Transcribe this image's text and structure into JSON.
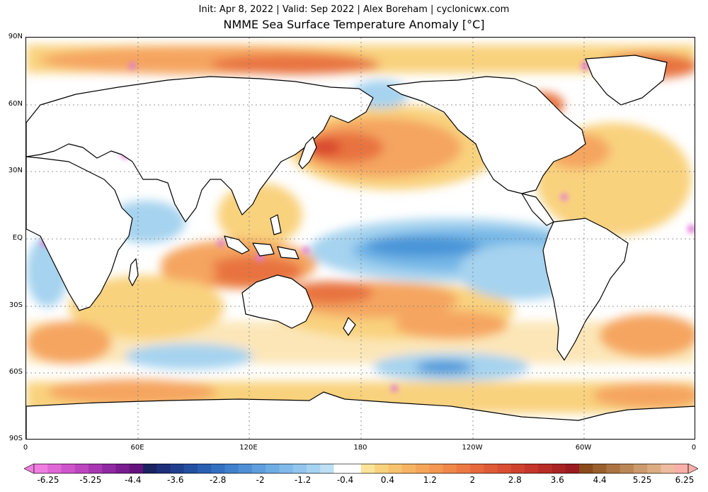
{
  "header": {
    "subtitle": "Init: Apr 8, 2022 | Valid: Sep 2022 | Alex Boreham | cyclonicwx.com",
    "title": "NMME Sea Surface Temperature Anomaly [°C]"
  },
  "map": {
    "projection": "equirectangular",
    "lat_ticks": [
      "90N",
      "60N",
      "30N",
      "EQ",
      "30S",
      "60S",
      "90S"
    ],
    "lon_ticks": [
      "0",
      "60E",
      "120E",
      "180",
      "120W",
      "60W",
      "0"
    ],
    "colors": {
      "land": "#ffffff",
      "coast": "#000000",
      "warm_light": "#f9d27e",
      "warm_mid": "#f5a560",
      "warm_strong": "#e8733f",
      "warm_peak": "#d9482e",
      "cool_light": "#a6d3ef",
      "cool_mid": "#73b6e6",
      "cool_strong": "#4a94d8",
      "extreme": "#e07ad6"
    }
  },
  "colorbar": {
    "labels": [
      "-6.25",
      "-5.25",
      "-4.4",
      "-3.6",
      "-2.8",
      "-2",
      "-1.2",
      "-0.4",
      "0.4",
      "1.2",
      "2",
      "2.8",
      "3.6",
      "4.4",
      "5.25",
      "6.25"
    ],
    "colors": [
      "#f07ee0",
      "#e067d6",
      "#cf55cc",
      "#bd45c0",
      "#a836b2",
      "#9028a2",
      "#7a1c90",
      "#63127c",
      "#1a2260",
      "#1c2f78",
      "#20408e",
      "#2450a2",
      "#2a60b2",
      "#3470c0",
      "#4080cc",
      "#4e8fd6",
      "#5e9ede",
      "#6eace4",
      "#80b9ea",
      "#93c6ee",
      "#a6d3f2",
      "#bde0f5",
      "#ffffff",
      "#ffffff",
      "#fbe39a",
      "#f9d27e",
      "#f8c36e",
      "#f6b463",
      "#f5a55a",
      "#f39752",
      "#f0884a",
      "#ec7943",
      "#e76a3d",
      "#e05c37",
      "#d84f32",
      "#cf432e",
      "#c4372a",
      "#b82d26",
      "#aa2323",
      "#9a1c20",
      "#8a4a1a",
      "#9a5f2c",
      "#ab7342",
      "#bc8757",
      "#cc9a6c",
      "#dcad82",
      "#eebca0",
      "#f8b0a8"
    ]
  }
}
